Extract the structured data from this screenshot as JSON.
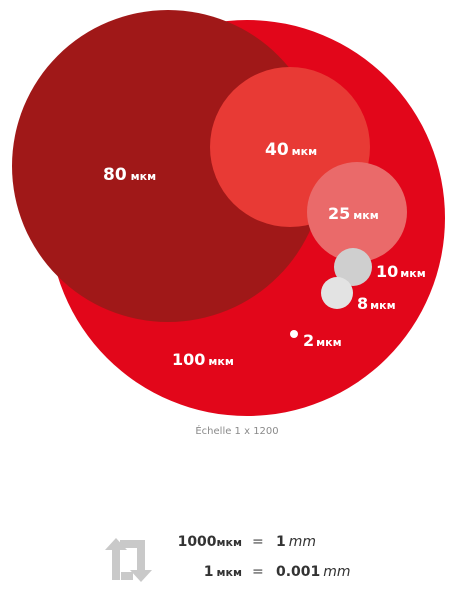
{
  "colors": {
    "bubble_100": "#e2061a",
    "bubble_80": "#a01818",
    "bubble_40": "#e83a35",
    "bubble_25": "#ea6a6a",
    "bubble_10": "#cfcfcf",
    "bubble_8": "#e3e3e3",
    "bubble_2": "#ffffff",
    "icon": "#c9c9c9"
  },
  "bubbles": {
    "b100": {
      "value": "100",
      "unit": "мкм"
    },
    "b80": {
      "value": "80",
      "unit": "мкм"
    },
    "b40": {
      "value": "40",
      "unit": "мкм"
    },
    "b25": {
      "value": "25",
      "unit": "мкм"
    },
    "b10": {
      "value": "10",
      "unit": "мкм"
    },
    "b8": {
      "value": "8",
      "unit": "мкм"
    },
    "b2": {
      "value": "2",
      "unit": "мкм"
    }
  },
  "scale_caption": "Échelle 1 x 1200",
  "conversion": {
    "icon": "swap-arrows-icon",
    "row1": {
      "left_value": "1000",
      "left_unit": "мкм",
      "equals": "=",
      "right_value": "1",
      "right_unit": "mm"
    },
    "row2": {
      "left_value": "1",
      "left_unit": "мкм",
      "equals": "=",
      "right_value": "0.001",
      "right_unit": "mm"
    }
  }
}
